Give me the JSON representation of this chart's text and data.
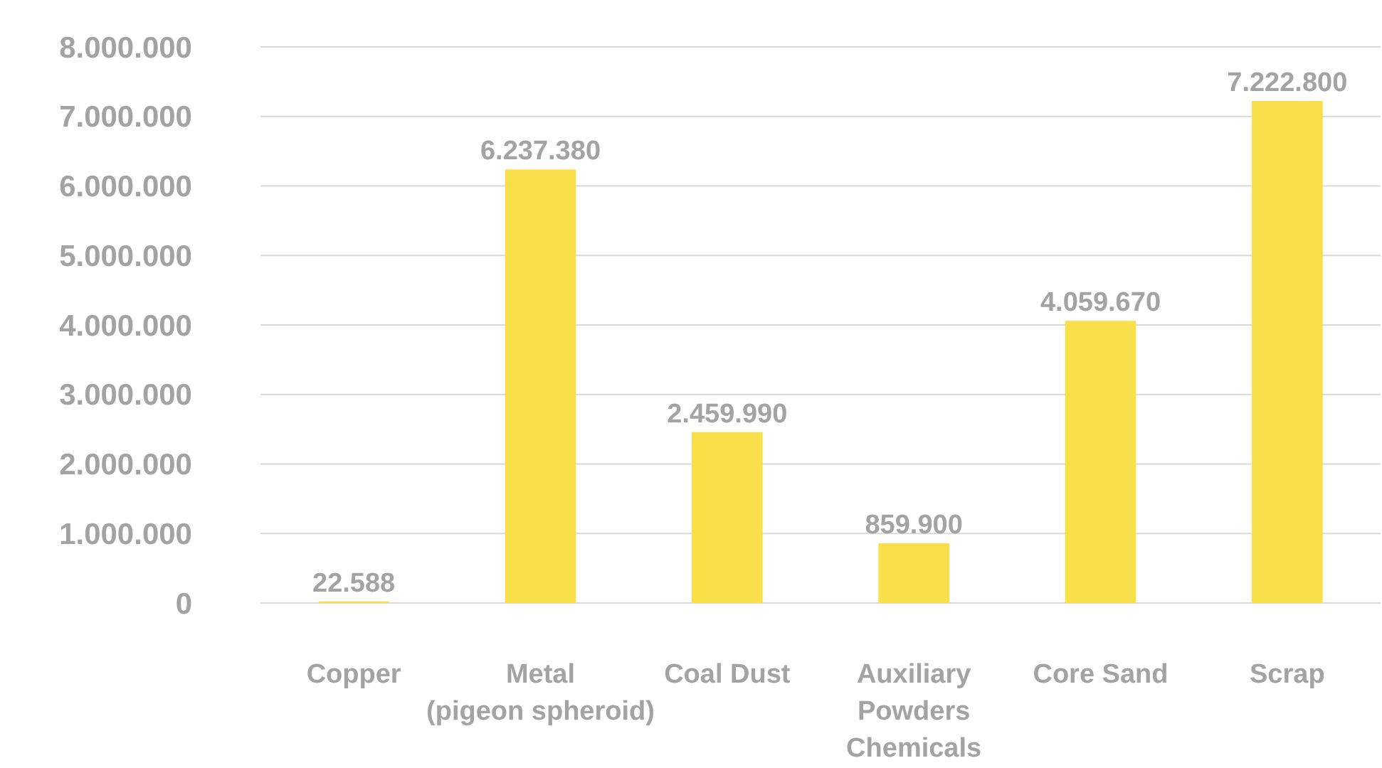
{
  "chart_data": {
    "type": "bar",
    "categories": [
      "Copper",
      "Metal\n(pigeon spheroid)",
      "Coal Dust",
      "Auxiliary\nPowders\nChemicals",
      "Core Sand",
      "Scrap"
    ],
    "values": [
      22588,
      6237380,
      2459990,
      859900,
      4059670,
      7222800
    ],
    "value_labels": [
      "22.588",
      "6.237.380",
      "2.459.990",
      "859.900",
      "4.059.670",
      "7.222.800"
    ],
    "color": "#f9df4a",
    "ylim": [
      0,
      8000000
    ],
    "yticks": [
      0,
      {
        "value": 1000000,
        "label": "1.000.000"
      },
      {
        "value": 2000000,
        "label": "2.000.000"
      },
      {
        "value": 3000000,
        "label": "3.000.000"
      },
      {
        "value": 4000000,
        "label": "4.000.000"
      },
      {
        "value": 5000000,
        "label": "5.000.000"
      },
      {
        "value": 6000000,
        "label": "6.000.000"
      },
      {
        "value": 7000000,
        "label": "7.000.000"
      },
      {
        "value": 8000000,
        "label": "8.000.000"
      }
    ],
    "grid": "y"
  }
}
